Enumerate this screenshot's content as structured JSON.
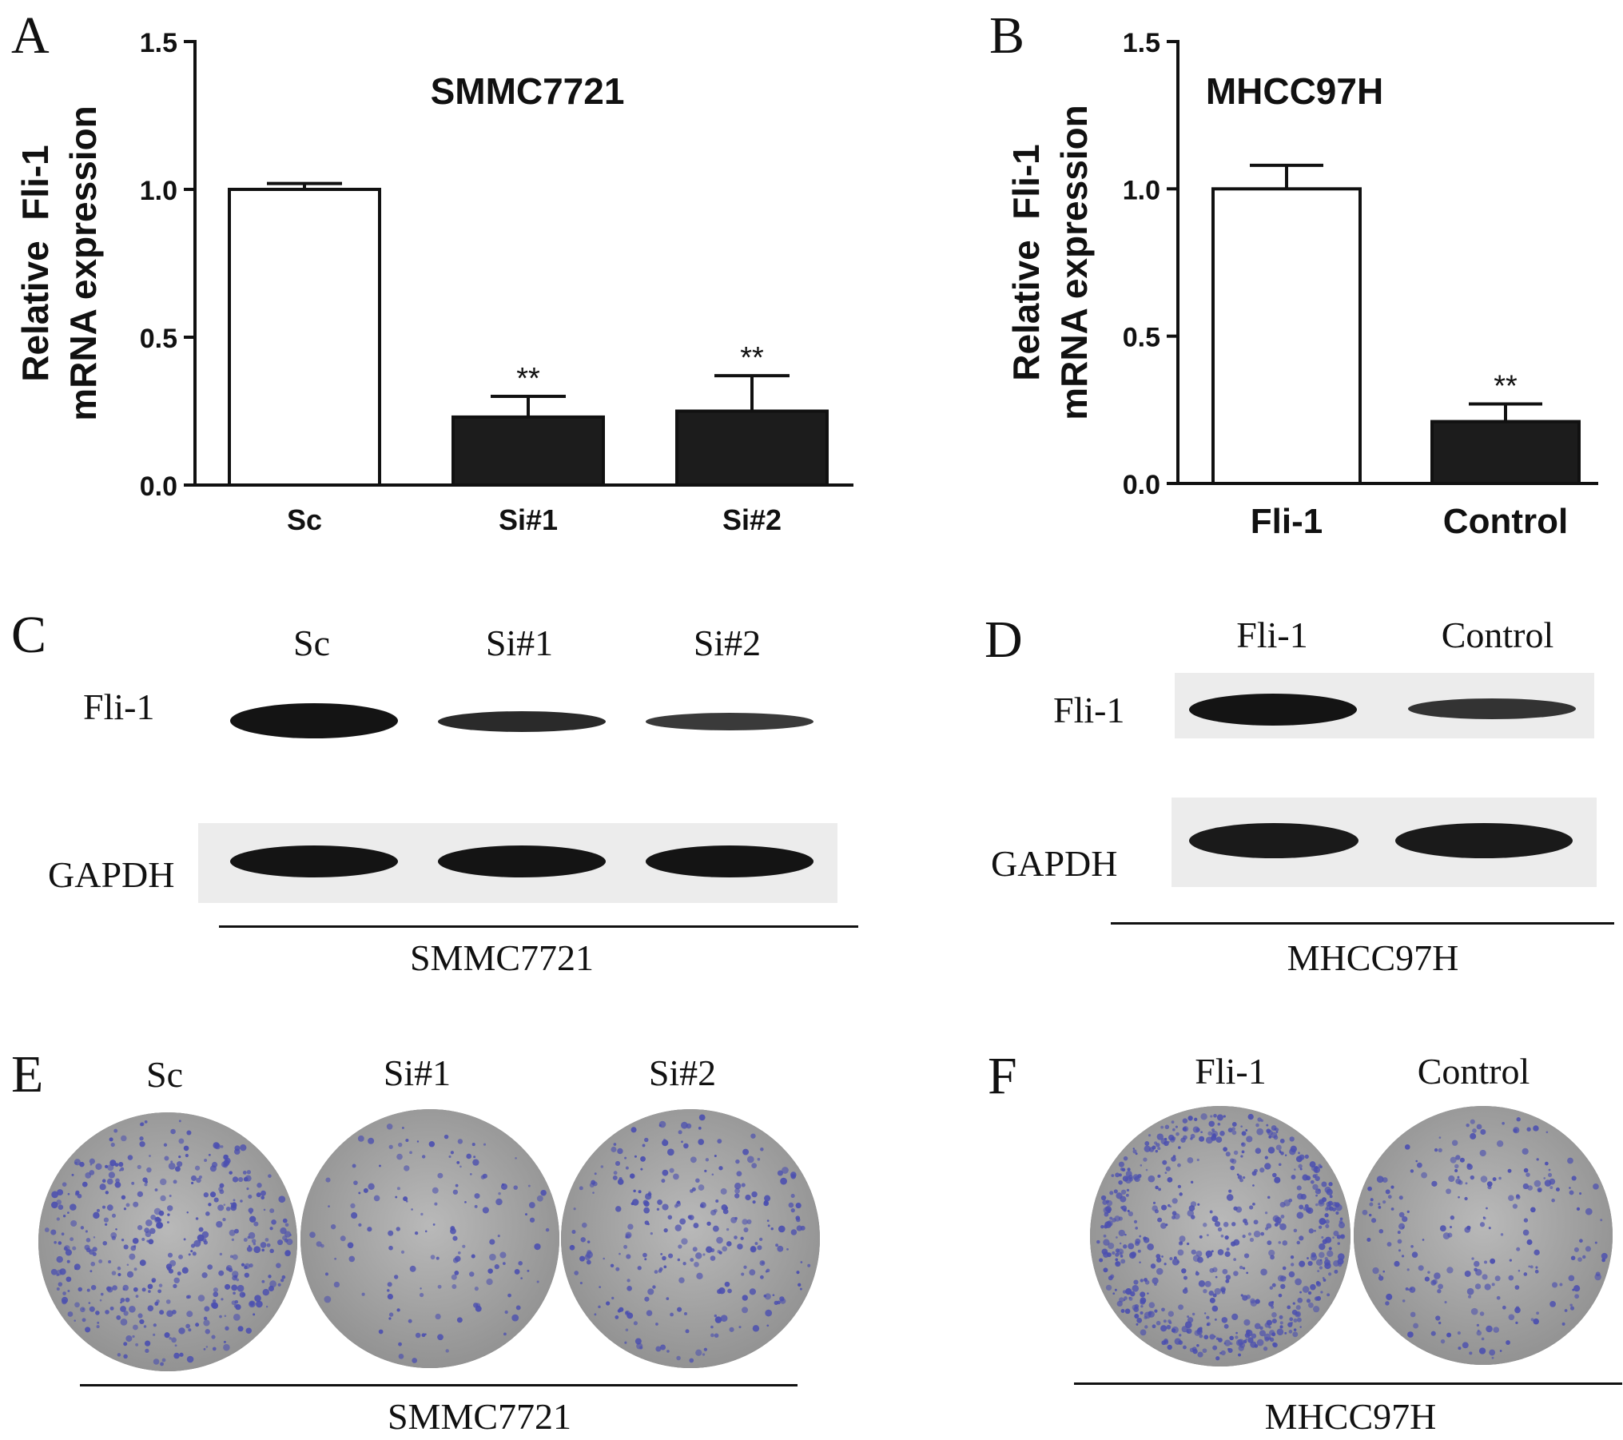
{
  "panel_labels": {
    "A": "A",
    "B": "B",
    "C": "C",
    "D": "D",
    "E": "E",
    "F": "F"
  },
  "chart_data": [
    {
      "panel": "A",
      "type": "bar",
      "title": "SMMC7721",
      "ylabel": [
        "Relative  Fli-1",
        "mRNA expression"
      ],
      "xlabel": "",
      "ylim": [
        0,
        1.5
      ],
      "yticks": [
        "0.0",
        "0.5",
        "1.0",
        "1.5"
      ],
      "ytick_values": [
        0,
        0.5,
        1.0,
        1.5
      ],
      "categories": [
        "Sc",
        "Si#1",
        "Si#2"
      ],
      "values": [
        1.0,
        0.23,
        0.25
      ],
      "errors": [
        0.02,
        0.07,
        0.12
      ],
      "annotations": [
        "",
        "**",
        "**"
      ],
      "fills": [
        "#ffffff",
        "#1c1c1c",
        "#1c1c1c"
      ],
      "grid": false
    },
    {
      "panel": "B",
      "type": "bar",
      "title": "MHCC97H",
      "ylabel": [
        "Relative  Fli-1",
        "mRNA expression"
      ],
      "xlabel": "",
      "ylim": [
        0,
        1.5
      ],
      "yticks": [
        "0.0",
        "0.5",
        "1.0",
        "1.5"
      ],
      "ytick_values": [
        0,
        0.5,
        1.0,
        1.5
      ],
      "categories": [
        "Fli-1",
        "Control"
      ],
      "values": [
        1.0,
        0.21
      ],
      "errors": [
        0.08,
        0.06
      ],
      "annotations": [
        "",
        "**"
      ],
      "fills": [
        "#ffffff",
        "#1c1c1c"
      ],
      "grid": false
    }
  ],
  "western_C": {
    "lanes": [
      "Sc",
      "Si#1",
      "Si#2"
    ],
    "rows": [
      "Fli-1",
      "GAPDH"
    ],
    "cell_line": "SMMC7721",
    "band_intensity": {
      "Fli-1": [
        1.0,
        0.55,
        0.45
      ],
      "GAPDH": [
        1.0,
        1.0,
        1.0
      ]
    }
  },
  "western_D": {
    "lanes": [
      "Fli-1",
      "Control"
    ],
    "rows": [
      "Fli-1",
      "GAPDH"
    ],
    "cell_line": "MHCC97H",
    "band_intensity": {
      "Fli-1": [
        1.0,
        0.6
      ],
      "GAPDH": [
        1.0,
        1.0
      ]
    }
  },
  "colony_E": {
    "plates": [
      "Sc",
      "Si#1",
      "Si#2"
    ],
    "cell_line": "SMMC7721",
    "relative_colony_density": [
      1.0,
      0.35,
      0.65
    ]
  },
  "colony_F": {
    "plates": [
      "Fli-1",
      "Control"
    ],
    "cell_line": "MHCC97H",
    "relative_colony_density": [
      1.0,
      0.55
    ]
  },
  "colors": {
    "bar_dark": "#1c1c1c",
    "band": "#151515",
    "colony": "#4b4fb0",
    "plate": "#a8a8a8"
  }
}
